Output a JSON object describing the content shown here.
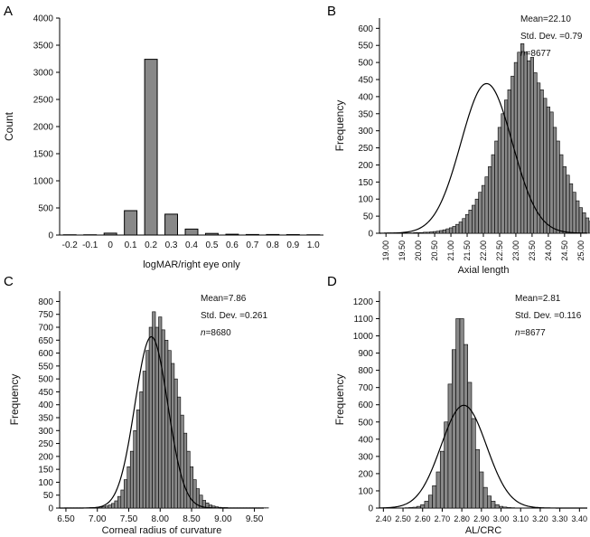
{
  "chart_data": [
    {
      "panel": "A",
      "type": "bar",
      "xlabel": "logMAR/right eye only",
      "ylabel": "Count",
      "categories": [
        "-0.2",
        "-0.1",
        "0",
        "0.1",
        "0.2",
        "0.3",
        "0.4",
        "0.5",
        "0.6",
        "0.7",
        "0.8",
        "0.9",
        "1.0"
      ],
      "values": [
        5,
        5,
        35,
        450,
        3240,
        385,
        110,
        30,
        15,
        10,
        10,
        8,
        5
      ],
      "ylim": [
        0,
        4000
      ],
      "yticks": [
        "0",
        "500",
        "1000",
        "1500",
        "2000",
        "2500",
        "3000",
        "3500",
        "4000"
      ],
      "color": "#888888"
    },
    {
      "panel": "B",
      "type": "bar",
      "subtype": "histogram",
      "xlabel": "Axial length",
      "ylabel": "Frequency",
      "xlim": [
        18.8,
        25.2
      ],
      "ylim": [
        0,
        630
      ],
      "bin_width": 0.1,
      "bin_start": 19.0,
      "values": [
        1,
        1,
        1,
        1,
        1,
        1,
        1,
        1,
        1,
        2,
        2,
        2,
        3,
        3,
        4,
        5,
        6,
        8,
        10,
        13,
        16,
        20,
        26,
        33,
        43,
        55,
        68,
        82,
        100,
        120,
        140,
        165,
        195,
        230,
        270,
        310,
        350,
        390,
        420,
        460,
        500,
        530,
        555,
        530,
        505,
        515,
        470,
        440,
        420,
        395,
        370,
        355,
        310,
        270,
        230,
        195,
        170,
        145,
        120,
        95,
        75,
        60,
        45,
        35,
        25,
        18,
        12,
        8,
        5,
        3,
        2,
        2,
        1,
        1,
        1,
        1,
        1,
        1,
        1
      ],
      "xticks": [
        "19.00",
        "19.50",
        "20.00",
        "20.50",
        "21.00",
        "21.50",
        "22.00",
        "22.50",
        "23.00",
        "23.50",
        "24.00",
        "24.50",
        "25.00"
      ],
      "yticks": [
        "0",
        "50",
        "100",
        "150",
        "200",
        "250",
        "300",
        "350",
        "400",
        "450",
        "500",
        "550",
        "600"
      ],
      "normal_curve": {
        "mean": 22.1,
        "sd": 0.79,
        "n": 8677
      },
      "stats_text": {
        "mean": "Mean=22.10",
        "sd": "Std. Dev. =0.79",
        "n_label": "n",
        "n_value": "=8677"
      },
      "color": "#888888"
    },
    {
      "panel": "C",
      "type": "bar",
      "subtype": "histogram",
      "xlabel": "Corneal radius of curvature",
      "ylabel": "Frequency",
      "xlim": [
        6.4,
        9.65
      ],
      "ylim": [
        0,
        840
      ],
      "bin_width": 0.05,
      "bin_start": 6.5,
      "values": [
        1,
        1,
        1,
        1,
        1,
        1,
        1,
        1,
        2,
        2,
        3,
        4,
        5,
        8,
        12,
        18,
        28,
        45,
        70,
        110,
        160,
        220,
        300,
        380,
        450,
        530,
        610,
        700,
        760,
        700,
        740,
        690,
        650,
        610,
        560,
        500,
        430,
        360,
        290,
        220,
        160,
        110,
        75,
        50,
        30,
        20,
        12,
        8,
        5,
        3,
        2,
        2,
        1,
        1,
        1,
        1,
        1,
        1,
        1,
        1,
        1,
        1,
        1,
        1,
        1
      ],
      "xticks": [
        "6.50",
        "7.00",
        "7.50",
        "8.00",
        "8.50",
        "9.00",
        "9.50"
      ],
      "yticks": [
        "0",
        "50",
        "100",
        "150",
        "200",
        "250",
        "300",
        "350",
        "400",
        "450",
        "500",
        "550",
        "600",
        "650",
        "700",
        "750",
        "800"
      ],
      "normal_curve": {
        "mean": 7.86,
        "sd": 0.261,
        "n": 8680
      },
      "stats_text": {
        "mean": "Mean=7.86",
        "sd": "Std. Dev. =0.261",
        "n_label": "n",
        "n_value": "=8680"
      },
      "color": "#888888"
    },
    {
      "panel": "D",
      "type": "bar",
      "subtype": "histogram",
      "xlabel": "AL/CRC",
      "ylabel": "Frequency",
      "xlim": [
        2.38,
        3.44
      ],
      "ylim": [
        0,
        1260
      ],
      "bin_width": 0.02,
      "bin_start": 2.4,
      "values": [
        1,
        1,
        1,
        1,
        1,
        1,
        2,
        3,
        5,
        10,
        20,
        40,
        75,
        130,
        210,
        330,
        500,
        720,
        920,
        1100,
        1100,
        950,
        730,
        520,
        340,
        210,
        120,
        70,
        40,
        20,
        10,
        6,
        3,
        2,
        1,
        1,
        1,
        1,
        1,
        1,
        1,
        1,
        1,
        1,
        1,
        1,
        1,
        1,
        1,
        1
      ],
      "xticks": [
        "2.40",
        "2.50",
        "2.60",
        "2.70",
        "2.80",
        "2.90",
        "3.00",
        "3.10",
        "3.20",
        "3.30",
        "3.40"
      ],
      "yticks": [
        "0",
        "100",
        "200",
        "300",
        "400",
        "500",
        "600",
        "700",
        "800",
        "900",
        "1000",
        "1100",
        "1200"
      ],
      "normal_curve": {
        "mean": 2.81,
        "sd": 0.116,
        "n": 8677
      },
      "stats_text": {
        "mean": "Mean=2.81",
        "sd": "Std. Dev. =0.116",
        "n_label": "n",
        "n_value": "=8677"
      },
      "color": "#888888"
    }
  ]
}
